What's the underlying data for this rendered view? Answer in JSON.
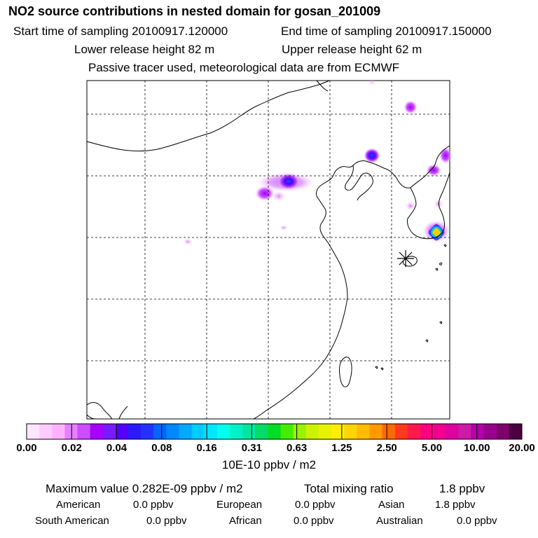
{
  "header": {
    "title": "NO2 source contributions in nested domain for gosan_201009",
    "start_time": "Start time of sampling 20100917.120000",
    "end_time": "End time of sampling 20100917.150000",
    "lower_height": "Lower release height   82 m",
    "upper_height": "Upper release height   62 m",
    "tracer_note": "Passive tracer used, meteorological data are from ECMWF"
  },
  "colorbar": {
    "colors": [
      "#ffe6ff",
      "#ffccff",
      "#ffb3ff",
      "#e680ff",
      "#cc4dff",
      "#a600ff",
      "#7a1aff",
      "#5500ff",
      "#2b1aff",
      "#2233ff",
      "#0066ff",
      "#0088ff",
      "#00aaff",
      "#00ccff",
      "#00e6ff",
      "#00ffee",
      "#00f2c8",
      "#00e6a0",
      "#00dd66",
      "#00dd22",
      "#44ee00",
      "#99f200",
      "#ccf200",
      "#e8f200",
      "#ffee00",
      "#ffd400",
      "#ffbb00",
      "#ff9900",
      "#ff6a00",
      "#ff3a1a",
      "#ff1a4a",
      "#ff0080",
      "#f20090",
      "#e000a0",
      "#cc1aaa",
      "#b300aa",
      "#99008c",
      "#80006e",
      "#4d0040"
    ],
    "tick_labels": [
      "0.00",
      "0.02",
      "0.04",
      "0.08",
      "0.16",
      "0.31",
      "0.63",
      "1.25",
      "2.50",
      "5.00",
      "10.00",
      "20.00"
    ],
    "units": "10E-10 ppbv / m2"
  },
  "summary": {
    "max_value": "Maximum value  0.282E-09 ppbv / m2",
    "total_label": "Total mixing ratio",
    "total_value": "1.8 ppbv"
  },
  "regions": [
    {
      "name": "American",
      "value": "0.0 ppbv"
    },
    {
      "name": "European",
      "value": "0.0 ppbv"
    },
    {
      "name": "Asian",
      "value": "1.8 ppbv"
    },
    {
      "name": "South American",
      "value": "0.0 ppbv"
    },
    {
      "name": "African",
      "value": "0.0 ppbv"
    },
    {
      "name": "Australian",
      "value": "0.0 ppbv"
    }
  ]
}
